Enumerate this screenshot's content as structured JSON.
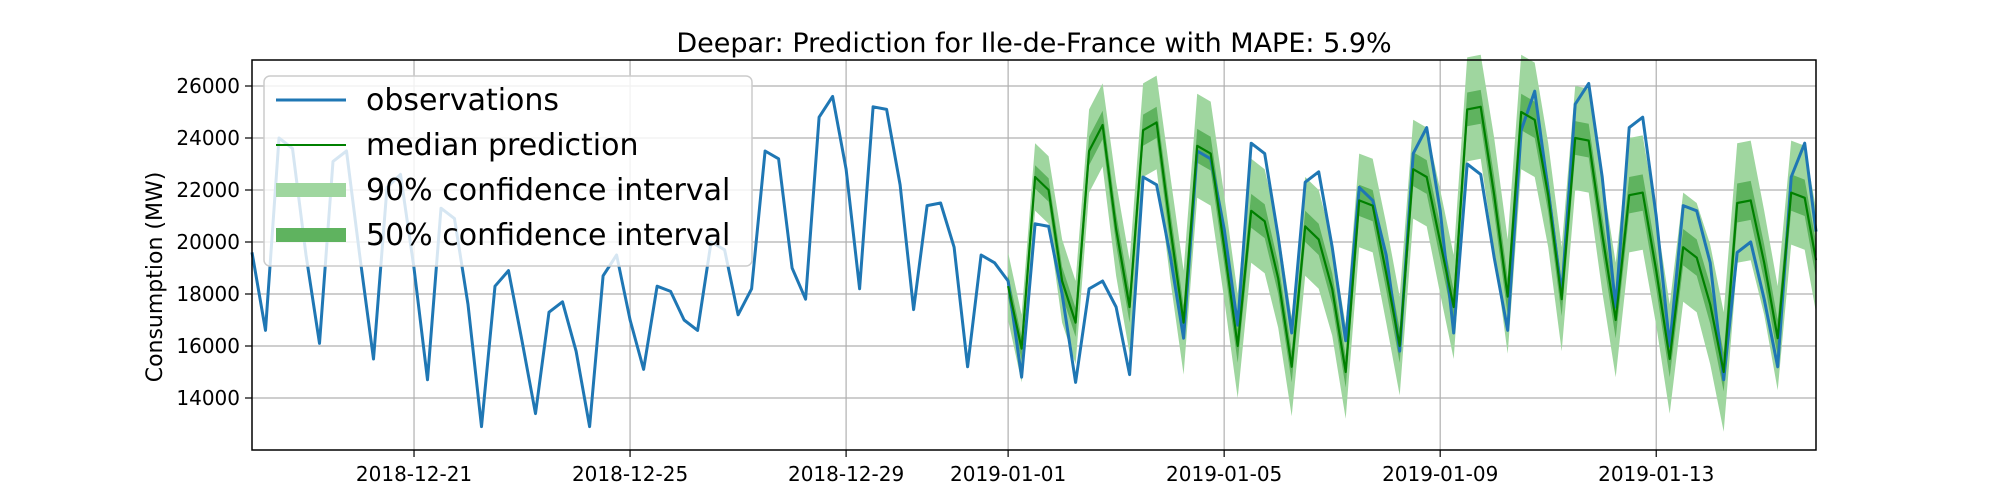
{
  "chart_data": {
    "type": "line",
    "title": "Deepar: Prediction for Ile-de-France with MAPE: 5.9%",
    "xlabel": "",
    "ylabel": "Consumption (MW)",
    "x_range": [
      "2018-12-18",
      "2019-01-15"
    ],
    "ylim": [
      12000,
      27000
    ],
    "y_ticks": [
      14000,
      16000,
      18000,
      20000,
      22000,
      24000,
      26000
    ],
    "x_ticks": [
      {
        "date": "2018-12-21",
        "label": "2018-12-21"
      },
      {
        "date": "2018-12-25",
        "label": "2018-12-25"
      },
      {
        "date": "2018-12-29",
        "label": "2018-12-29"
      },
      {
        "date": "2019-01-01",
        "label": "2019-01-01"
      },
      {
        "date": "2019-01-05",
        "label": "2019-01-05"
      },
      {
        "date": "2019-01-09",
        "label": "2019-01-09"
      },
      {
        "date": "2019-01-13",
        "label": "2019-01-13"
      }
    ],
    "grid": true,
    "legend_placement": "top-left",
    "colors": {
      "observations": "#1f77b4",
      "median": "#008000",
      "ci90": "#9fd69f",
      "ci50": "#5fb35f"
    },
    "series": [
      {
        "name": "observations",
        "points": [
          [
            "2018-12-18 00:00",
            19600
          ],
          [
            "2018-12-18 06:00",
            16600
          ],
          [
            "2018-12-18 12:00",
            24000
          ],
          [
            "2018-12-18 18:00",
            23600
          ],
          [
            "2018-12-19 00:00",
            19500
          ],
          [
            "2018-12-19 06:00",
            16100
          ],
          [
            "2018-12-19 12:00",
            23100
          ],
          [
            "2018-12-19 18:00",
            23500
          ],
          [
            "2018-12-20 00:00",
            19400
          ],
          [
            "2018-12-20 06:00",
            15500
          ],
          [
            "2018-12-20 12:00",
            22100
          ],
          [
            "2018-12-20 18:00",
            22600
          ],
          [
            "2018-12-21 00:00",
            19000
          ],
          [
            "2018-12-21 06:00",
            14700
          ],
          [
            "2018-12-21 12:00",
            21300
          ],
          [
            "2018-12-21 18:00",
            20900
          ],
          [
            "2018-12-22 00:00",
            17600
          ],
          [
            "2018-12-22 06:00",
            12900
          ],
          [
            "2018-12-22 12:00",
            18300
          ],
          [
            "2018-12-22 18:00",
            18900
          ],
          [
            "2018-12-23 00:00",
            16200
          ],
          [
            "2018-12-23 06:00",
            13400
          ],
          [
            "2018-12-23 12:00",
            17300
          ],
          [
            "2018-12-23 18:00",
            17700
          ],
          [
            "2018-12-24 00:00",
            15800
          ],
          [
            "2018-12-24 06:00",
            12900
          ],
          [
            "2018-12-24 12:00",
            18700
          ],
          [
            "2018-12-24 18:00",
            19500
          ],
          [
            "2018-12-25 00:00",
            17000
          ],
          [
            "2018-12-25 06:00",
            15100
          ],
          [
            "2018-12-25 12:00",
            18300
          ],
          [
            "2018-12-25 18:00",
            18100
          ],
          [
            "2018-12-26 00:00",
            17000
          ],
          [
            "2018-12-26 06:00",
            16600
          ],
          [
            "2018-12-26 12:00",
            20000
          ],
          [
            "2018-12-26 18:00",
            19700
          ],
          [
            "2018-12-27 00:00",
            17200
          ],
          [
            "2018-12-27 06:00",
            18200
          ],
          [
            "2018-12-27 12:00",
            23500
          ],
          [
            "2018-12-27 18:00",
            23200
          ],
          [
            "2018-12-28 00:00",
            19000
          ],
          [
            "2018-12-28 06:00",
            17800
          ],
          [
            "2018-12-28 12:00",
            24800
          ],
          [
            "2018-12-28 18:00",
            25600
          ],
          [
            "2018-12-29 00:00",
            22800
          ],
          [
            "2018-12-29 06:00",
            18200
          ],
          [
            "2018-12-29 12:00",
            25200
          ],
          [
            "2018-12-29 18:00",
            25100
          ],
          [
            "2018-12-30 00:00",
            22200
          ],
          [
            "2018-12-30 06:00",
            17400
          ],
          [
            "2018-12-30 12:00",
            21400
          ],
          [
            "2018-12-30 18:00",
            21500
          ],
          [
            "2018-12-31 00:00",
            19800
          ],
          [
            "2018-12-31 06:00",
            15200
          ],
          [
            "2018-12-31 12:00",
            19500
          ],
          [
            "2018-12-31 18:00",
            19200
          ],
          [
            "2019-01-01 00:00",
            18500
          ],
          [
            "2019-01-01 06:00",
            14800
          ],
          [
            "2019-01-01 12:00",
            20700
          ],
          [
            "2019-01-01 18:00",
            20600
          ],
          [
            "2019-01-02 00:00",
            18000
          ],
          [
            "2019-01-02 06:00",
            14600
          ],
          [
            "2019-01-02 12:00",
            18200
          ],
          [
            "2019-01-02 18:00",
            18500
          ],
          [
            "2019-01-03 00:00",
            17500
          ],
          [
            "2019-01-03 06:00",
            14900
          ],
          [
            "2019-01-03 12:00",
            22500
          ],
          [
            "2019-01-03 18:00",
            22200
          ],
          [
            "2019-01-04 00:00",
            19500
          ],
          [
            "2019-01-04 06:00",
            16300
          ],
          [
            "2019-01-04 12:00",
            23500
          ],
          [
            "2019-01-04 18:00",
            23200
          ],
          [
            "2019-01-05 00:00",
            20500
          ],
          [
            "2019-01-05 06:00",
            16800
          ],
          [
            "2019-01-05 12:00",
            23800
          ],
          [
            "2019-01-05 18:00",
            23400
          ],
          [
            "2019-01-06 00:00",
            20200
          ],
          [
            "2019-01-06 06:00",
            16500
          ],
          [
            "2019-01-06 12:00",
            22300
          ],
          [
            "2019-01-06 18:00",
            22700
          ],
          [
            "2019-01-07 00:00",
            19800
          ],
          [
            "2019-01-07 06:00",
            16200
          ],
          [
            "2019-01-07 12:00",
            22100
          ],
          [
            "2019-01-07 18:00",
            21600
          ],
          [
            "2019-01-08 00:00",
            19500
          ],
          [
            "2019-01-08 06:00",
            15800
          ],
          [
            "2019-01-08 12:00",
            23400
          ],
          [
            "2019-01-08 18:00",
            24400
          ],
          [
            "2019-01-09 00:00",
            21200
          ],
          [
            "2019-01-09 06:00",
            16500
          ],
          [
            "2019-01-09 12:00",
            23000
          ],
          [
            "2019-01-09 18:00",
            22600
          ],
          [
            "2019-01-10 00:00",
            19400
          ],
          [
            "2019-01-10 06:00",
            16600
          ],
          [
            "2019-01-10 12:00",
            24300
          ],
          [
            "2019-01-10 18:00",
            25800
          ],
          [
            "2019-01-11 00:00",
            22000
          ],
          [
            "2019-01-11 06:00",
            18000
          ],
          [
            "2019-01-11 12:00",
            25300
          ],
          [
            "2019-01-11 18:00",
            26100
          ],
          [
            "2019-01-12 00:00",
            22500
          ],
          [
            "2019-01-12 06:00",
            17500
          ],
          [
            "2019-01-12 12:00",
            24400
          ],
          [
            "2019-01-12 18:00",
            24800
          ],
          [
            "2019-01-13 00:00",
            21000
          ],
          [
            "2019-01-13 06:00",
            16000
          ],
          [
            "2019-01-13 12:00",
            21400
          ],
          [
            "2019-01-13 18:00",
            21200
          ],
          [
            "2019-01-14 00:00",
            19200
          ],
          [
            "2019-01-14 06:00",
            14700
          ],
          [
            "2019-01-14 12:00",
            19600
          ],
          [
            "2019-01-14 18:00",
            20000
          ],
          [
            "2019-01-15 00:00",
            17800
          ],
          [
            "2019-01-15 06:00",
            15200
          ],
          [
            "2019-01-15 12:00",
            22500
          ],
          [
            "2019-01-15 18:00",
            23800
          ],
          [
            "2019-01-15 23:00",
            20400
          ]
        ]
      },
      {
        "name": "median prediction",
        "points": [
          [
            "2019-01-01 00:00",
            18300
          ],
          [
            "2019-01-01 06:00",
            15900
          ],
          [
            "2019-01-01 12:00",
            22500
          ],
          [
            "2019-01-01 18:00",
            22000
          ],
          [
            "2019-01-02 00:00",
            18500
          ],
          [
            "2019-01-02 06:00",
            16900
          ],
          [
            "2019-01-02 12:00",
            23500
          ],
          [
            "2019-01-02 18:00",
            24500
          ],
          [
            "2019-01-03 00:00",
            20500
          ],
          [
            "2019-01-03 06:00",
            17500
          ],
          [
            "2019-01-03 12:00",
            24300
          ],
          [
            "2019-01-03 18:00",
            24600
          ],
          [
            "2019-01-04 00:00",
            20600
          ],
          [
            "2019-01-04 06:00",
            16900
          ],
          [
            "2019-01-04 12:00",
            23700
          ],
          [
            "2019-01-04 18:00",
            23400
          ],
          [
            "2019-01-05 00:00",
            19800
          ],
          [
            "2019-01-05 06:00",
            16000
          ],
          [
            "2019-01-05 12:00",
            21200
          ],
          [
            "2019-01-05 18:00",
            20800
          ],
          [
            "2019-01-06 00:00",
            18600
          ],
          [
            "2019-01-06 06:00",
            15200
          ],
          [
            "2019-01-06 12:00",
            20600
          ],
          [
            "2019-01-06 18:00",
            20100
          ],
          [
            "2019-01-07 00:00",
            18200
          ],
          [
            "2019-01-07 06:00",
            15000
          ],
          [
            "2019-01-07 12:00",
            21600
          ],
          [
            "2019-01-07 18:00",
            21400
          ],
          [
            "2019-01-08 00:00",
            18800
          ],
          [
            "2019-01-08 06:00",
            16000
          ],
          [
            "2019-01-08 12:00",
            22800
          ],
          [
            "2019-01-08 18:00",
            22500
          ],
          [
            "2019-01-09 00:00",
            20000
          ],
          [
            "2019-01-09 06:00",
            17500
          ],
          [
            "2019-01-09 12:00",
            25100
          ],
          [
            "2019-01-09 18:00",
            25200
          ],
          [
            "2019-01-10 00:00",
            21800
          ],
          [
            "2019-01-10 06:00",
            17900
          ],
          [
            "2019-01-10 12:00",
            25000
          ],
          [
            "2019-01-10 18:00",
            24700
          ],
          [
            "2019-01-11 00:00",
            21800
          ],
          [
            "2019-01-11 06:00",
            17800
          ],
          [
            "2019-01-11 12:00",
            24000
          ],
          [
            "2019-01-11 18:00",
            23900
          ],
          [
            "2019-01-12 00:00",
            20300
          ],
          [
            "2019-01-12 06:00",
            17000
          ],
          [
            "2019-01-12 12:00",
            21800
          ],
          [
            "2019-01-12 18:00",
            21900
          ],
          [
            "2019-01-13 00:00",
            18900
          ],
          [
            "2019-01-13 06:00",
            15500
          ],
          [
            "2019-01-13 12:00",
            19800
          ],
          [
            "2019-01-13 18:00",
            19400
          ],
          [
            "2019-01-14 00:00",
            17600
          ],
          [
            "2019-01-14 06:00",
            15000
          ],
          [
            "2019-01-14 12:00",
            21500
          ],
          [
            "2019-01-14 18:00",
            21600
          ],
          [
            "2019-01-15 00:00",
            19200
          ],
          [
            "2019-01-15 06:00",
            16300
          ],
          [
            "2019-01-15 12:00",
            21900
          ],
          [
            "2019-01-15 18:00",
            21700
          ],
          [
            "2019-01-15 23:00",
            19300
          ]
        ]
      },
      {
        "name": "90% confidence interval",
        "band_half_width": [
          1300,
          1600,
          1800,
          2000,
          2000,
          1900,
          1800,
          1900,
          2000,
          2200,
          2000,
          2200,
          2100,
          2300,
          2000,
          2100
        ],
        "band_note_days": "per-day half-width of the 90% band, days 2019-01-01 to 2019-01-15 (extra value for the last point)"
      },
      {
        "name": "50% confidence interval",
        "band_half_width": [
          450,
          550,
          600,
          650,
          650,
          600,
          600,
          650,
          650,
          700,
          650,
          700,
          700,
          750,
          700,
          700
        ],
        "band_note_days": "per-day half-width of the 50% band, days 2019-01-01 to 2019-01-15 (extra value for the last point)"
      }
    ],
    "legend": [
      {
        "label": "observations",
        "kind": "line",
        "color": "#1f77b4"
      },
      {
        "label": "median prediction",
        "kind": "thin-line",
        "color": "#008000"
      },
      {
        "label": "90% confidence interval",
        "kind": "band",
        "color": "#9fd69f"
      },
      {
        "label": "50% confidence interval",
        "kind": "band",
        "color": "#5fb35f"
      }
    ]
  }
}
